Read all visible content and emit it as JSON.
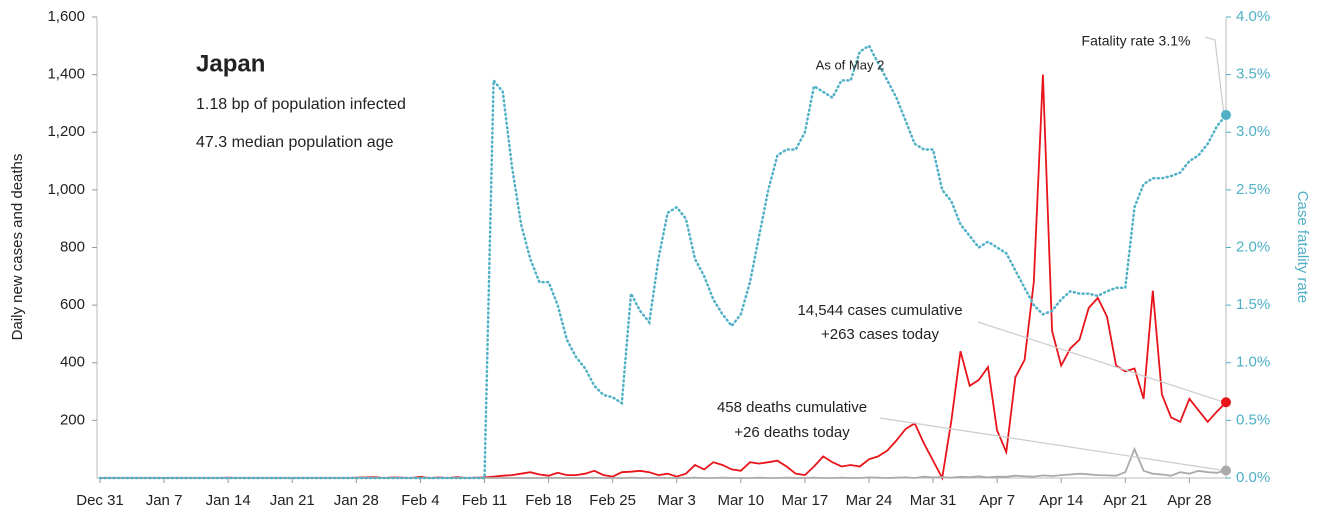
{
  "chart_data": {
    "type": "line",
    "y_label": "Daily new cases and deaths",
    "y2_label": "Case fatality rate",
    "annotations": [
      "Japan",
      "1.18 bp of population infected",
      "47.3 median population age",
      "As of May 2",
      "Fatality rate 3.1%",
      "14,544 cases cumulative",
      "+263 cases today",
      "458 deaths cumulative",
      "+26 deaths today"
    ],
    "categories": [
      "Dec 31",
      "Jan 1",
      "Jan 2",
      "Jan 3",
      "Jan 4",
      "Jan 5",
      "Jan 6",
      "Jan 7",
      "Jan 8",
      "Jan 9",
      "Jan 10",
      "Jan 11",
      "Jan 12",
      "Jan 13",
      "Jan 14",
      "Jan 15",
      "Jan 16",
      "Jan 17",
      "Jan 18",
      "Jan 19",
      "Jan 20",
      "Jan 21",
      "Jan 22",
      "Jan 23",
      "Jan 24",
      "Jan 25",
      "Jan 26",
      "Jan 27",
      "Jan 28",
      "Jan 29",
      "Jan 30",
      "Jan 31",
      "Feb 1",
      "Feb 2",
      "Feb 3",
      "Feb 4",
      "Feb 5",
      "Feb 6",
      "Feb 7",
      "Feb 8",
      "Feb 9",
      "Feb 10",
      "Feb 11",
      "Feb 12",
      "Feb 13",
      "Feb 14",
      "Feb 15",
      "Feb 16",
      "Feb 17",
      "Feb 18",
      "Feb 19",
      "Feb 20",
      "Feb 21",
      "Feb 22",
      "Feb 23",
      "Feb 24",
      "Feb 25",
      "Feb 26",
      "Feb 27",
      "Feb 28",
      "Feb 29",
      "Mar 1",
      "Mar 2",
      "Mar 3",
      "Mar 4",
      "Mar 5",
      "Mar 6",
      "Mar 7",
      "Mar 8",
      "Mar 9",
      "Mar 10",
      "Mar 11",
      "Mar 12",
      "Mar 13",
      "Mar 14",
      "Mar 15",
      "Mar 16",
      "Mar 17",
      "Mar 18",
      "Mar 19",
      "Mar 20",
      "Mar 21",
      "Mar 22",
      "Mar 23",
      "Mar 24",
      "Mar 25",
      "Mar 26",
      "Mar 27",
      "Mar 28",
      "Mar 29",
      "Mar 30",
      "Mar 31",
      "Apr 1",
      "Apr 2",
      "Apr 3",
      "Apr 4",
      "Apr 5",
      "Apr 6",
      "Apr 7",
      "Apr 8",
      "Apr 9",
      "Apr 10",
      "Apr 11",
      "Apr 12",
      "Apr 13",
      "Apr 14",
      "Apr 15",
      "Apr 16",
      "Apr 17",
      "Apr 18",
      "Apr 19",
      "Apr 20",
      "Apr 21",
      "Apr 22",
      "Apr 23",
      "Apr 24",
      "Apr 25",
      "Apr 26",
      "Apr 27",
      "Apr 28",
      "Apr 29",
      "Apr 30",
      "May 1",
      "May 2"
    ],
    "xticks": [
      "Dec 31",
      "Jan 7",
      "Jan 14",
      "Jan 21",
      "Jan 28",
      "Feb 4",
      "Feb 11",
      "Feb 18",
      "Feb 25",
      "Mar 3",
      "Mar 10",
      "Mar 17",
      "Mar 24",
      "Mar 31",
      "Apr 7",
      "Apr 14",
      "Apr 21",
      "Apr 28"
    ],
    "ylim": [
      0,
      1600
    ],
    "yticks": [
      200,
      400,
      600,
      800,
      {
        "value": 1000,
        "label": "1,000"
      },
      {
        "value": 1200,
        "label": "1,200"
      },
      {
        "value": 1400,
        "label": "1,400"
      },
      {
        "value": 1600,
        "label": "1,600"
      }
    ],
    "y2lim": [
      0,
      4
    ],
    "y2ticks": [
      {
        "value": 0,
        "label": "0.0%"
      },
      {
        "value": 0.5,
        "label": "0.5%"
      },
      {
        "value": 1,
        "label": "1.0%"
      },
      {
        "value": 1.5,
        "label": "1.5%"
      },
      {
        "value": 2,
        "label": "2.0%"
      },
      {
        "value": 2.5,
        "label": "2.5%"
      },
      {
        "value": 3,
        "label": "3.0%"
      },
      {
        "value": 3.5,
        "label": "3.5%"
      },
      {
        "value": 4,
        "label": "4.0%"
      }
    ],
    "grid": false,
    "series": [
      {
        "color": "#e8141a",
        "values": [
          0,
          0,
          0,
          0,
          0,
          0,
          0,
          0,
          0,
          0,
          0,
          0,
          0,
          0,
          1,
          0,
          0,
          0,
          0,
          0,
          0,
          0,
          0,
          0,
          0,
          0,
          0,
          0,
          1,
          2,
          3,
          0,
          2,
          1,
          0,
          4,
          0,
          2,
          0,
          3,
          0,
          1,
          2,
          5,
          8,
          10,
          15,
          20,
          12,
          8,
          18,
          10,
          10,
          15,
          25,
          10,
          5,
          20,
          22,
          25,
          20,
          10,
          15,
          5,
          15,
          45,
          30,
          55,
          45,
          30,
          25,
          55,
          50,
          55,
          60,
          40,
          15,
          10,
          40,
          75,
          55,
          40,
          45,
          40,
          65,
          75,
          95,
          130,
          170,
          190,
          120,
          60,
          0,
          200,
          440,
          320,
          340,
          385,
          165,
          90,
          350,
          410,
          680,
          1400,
          510,
          390,
          450,
          480,
          590,
          625,
          560,
          390,
          370,
          380,
          275,
          650,
          290,
          210,
          195,
          275,
          235,
          195,
          230,
          263
        ]
      },
      {
        "color": "#aaaaaa",
        "values": [
          0,
          0,
          0,
          0,
          0,
          0,
          0,
          0,
          0,
          0,
          0,
          0,
          0,
          0,
          0,
          0,
          0,
          0,
          0,
          0,
          0,
          0,
          0,
          0,
          0,
          0,
          0,
          0,
          0,
          0,
          0,
          0,
          0,
          0,
          0,
          0,
          0,
          0,
          0,
          0,
          0,
          0,
          0,
          0,
          0,
          0,
          0,
          0,
          0,
          1,
          0,
          0,
          0,
          0,
          1,
          0,
          0,
          0,
          1,
          0,
          0,
          1,
          0,
          0,
          0,
          1,
          0,
          0,
          1,
          0,
          0,
          0,
          1,
          0,
          0,
          1,
          0,
          0,
          1,
          0,
          0,
          1,
          0,
          0,
          2,
          1,
          0,
          1,
          2,
          0,
          5,
          2,
          3,
          1,
          4,
          3,
          6,
          2,
          5,
          4,
          8,
          6,
          5,
          9,
          7,
          10,
          12,
          15,
          13,
          10,
          9,
          8,
          20,
          100,
          25,
          15,
          12,
          8,
          20,
          15,
          25,
          20,
          18,
          26
        ]
      },
      {
        "color": "#4fb0c6",
        "axis": "y2",
        "line_style": "dotted",
        "values": [
          0,
          0,
          0,
          0,
          0,
          0,
          0,
          0,
          0,
          0,
          0,
          0,
          0,
          0,
          0,
          0,
          0,
          0,
          0,
          0,
          0,
          0,
          0,
          0,
          0,
          0,
          0,
          0,
          0,
          0,
          0,
          0,
          0,
          0,
          0,
          0,
          0,
          0,
          0,
          0,
          0,
          0,
          0,
          3.45,
          3.35,
          2.7,
          2.2,
          1.9,
          1.7,
          1.7,
          1.5,
          1.2,
          1.05,
          0.95,
          0.8,
          0.72,
          0.7,
          0.65,
          1.6,
          1.45,
          1.35,
          1.9,
          2.3,
          2.35,
          2.25,
          1.9,
          1.75,
          1.55,
          1.42,
          1.32,
          1.42,
          1.7,
          2.1,
          2.5,
          2.8,
          2.85,
          2.85,
          3.0,
          3.4,
          3.35,
          3.3,
          3.45,
          3.45,
          3.7,
          3.75,
          3.6,
          3.45,
          3.3,
          3.1,
          2.9,
          2.85,
          2.85,
          2.5,
          2.4,
          2.2,
          2.1,
          2.0,
          2.05,
          2.0,
          1.95,
          1.8,
          1.65,
          1.5,
          1.42,
          1.45,
          1.55,
          1.62,
          1.6,
          1.6,
          1.58,
          1.62,
          1.65,
          1.65,
          2.35,
          2.55,
          2.6,
          2.6,
          2.62,
          2.65,
          2.75,
          2.8,
          2.9,
          3.05,
          3.15
        ]
      }
    ]
  }
}
